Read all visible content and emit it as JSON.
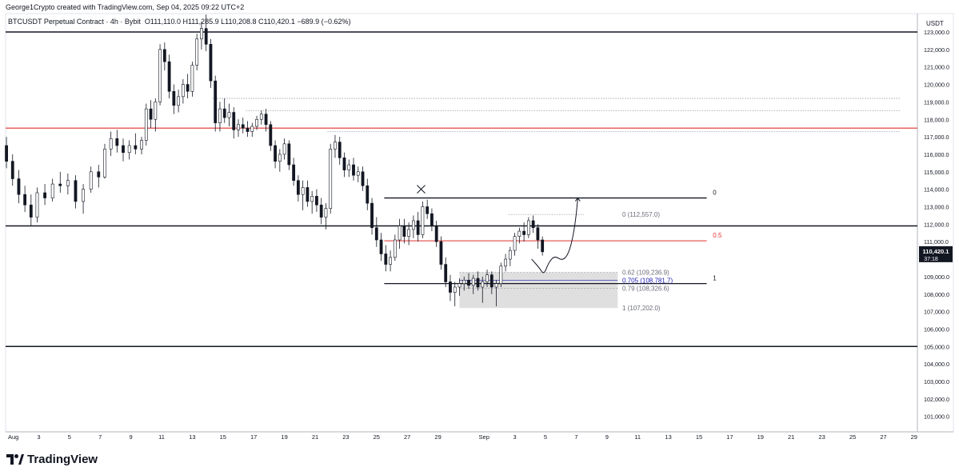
{
  "header": {
    "credit": "George1Crypto created with TradingView.com, Sep 04, 2025 09:22 UTC+2",
    "symbol": "BTCUSDT Perpetual Contract · 4h · Bybit",
    "ohlc": "O111,110.0  H111,285.9  L110,208.8  C110,420.1  −689.9 (−0.62%)"
  },
  "brand": {
    "name": "TradingView",
    "icon": "tradingview-logo-icon"
  },
  "colors": {
    "up": "#131722",
    "down": "#131722",
    "red_level": "#e0312f",
    "fib_blue": "#1b1bb3",
    "zone": "#d9d9d9"
  },
  "chart_data": {
    "type": "candlestick",
    "title": "",
    "ylabel": "USDT",
    "ylim": [
      100000,
      124000
    ],
    "y_ticks": [
      101000,
      102000,
      103000,
      104000,
      105000,
      106000,
      107000,
      108000,
      109000,
      110000,
      111000,
      112000,
      113000,
      114000,
      115000,
      116000,
      117000,
      118000,
      119000,
      120000,
      121000,
      122000,
      123000
    ],
    "x_ticks": [
      {
        "label": "Aug",
        "day": 1
      },
      {
        "label": "3",
        "day": 3
      },
      {
        "label": "5",
        "day": 5
      },
      {
        "label": "7",
        "day": 7
      },
      {
        "label": "9",
        "day": 9
      },
      {
        "label": "11",
        "day": 11
      },
      {
        "label": "13",
        "day": 13
      },
      {
        "label": "15",
        "day": 15
      },
      {
        "label": "17",
        "day": 17
      },
      {
        "label": "19",
        "day": 19
      },
      {
        "label": "21",
        "day": 21
      },
      {
        "label": "23",
        "day": 23
      },
      {
        "label": "25",
        "day": 25
      },
      {
        "label": "27",
        "day": 27
      },
      {
        "label": "29",
        "day": 29
      },
      {
        "label": "Sep",
        "day": 32
      },
      {
        "label": "3",
        "day": 34
      },
      {
        "label": "5",
        "day": 36
      },
      {
        "label": "7",
        "day": 38
      },
      {
        "label": "9",
        "day": 40
      },
      {
        "label": "11",
        "day": 42
      },
      {
        "label": "13",
        "day": 44
      },
      {
        "label": "15",
        "day": 46
      },
      {
        "label": "17",
        "day": 48
      },
      {
        "label": "19",
        "day": 50
      },
      {
        "label": "21",
        "day": 52
      },
      {
        "label": "23",
        "day": 54
      },
      {
        "label": "25",
        "day": 56
      },
      {
        "label": "27",
        "day": 58
      },
      {
        "label": "29",
        "day": 60
      }
    ],
    "candles": [
      {
        "day": 0.9,
        "o": 116500,
        "h": 117000,
        "l": 115200,
        "c": 115600
      },
      {
        "day": 1.3,
        "o": 115600,
        "h": 116000,
        "l": 114200,
        "c": 114600
      },
      {
        "day": 1.7,
        "o": 114600,
        "h": 115100,
        "l": 113200,
        "c": 113700
      },
      {
        "day": 2.1,
        "o": 113700,
        "h": 114200,
        "l": 112700,
        "c": 113100
      },
      {
        "day": 2.5,
        "o": 113100,
        "h": 113700,
        "l": 111900,
        "c": 112400
      },
      {
        "day": 2.9,
        "o": 112400,
        "h": 114100,
        "l": 112100,
        "c": 113800
      },
      {
        "day": 3.4,
        "o": 113800,
        "h": 114300,
        "l": 113100,
        "c": 113500
      },
      {
        "day": 3.9,
        "o": 113500,
        "h": 114600,
        "l": 113300,
        "c": 114300
      },
      {
        "day": 4.4,
        "o": 114300,
        "h": 115000,
        "l": 113800,
        "c": 114200
      },
      {
        "day": 4.9,
        "o": 114200,
        "h": 114900,
        "l": 113700,
        "c": 114500
      },
      {
        "day": 5.4,
        "o": 114500,
        "h": 114800,
        "l": 112900,
        "c": 113300
      },
      {
        "day": 5.9,
        "o": 113300,
        "h": 114300,
        "l": 112600,
        "c": 114000
      },
      {
        "day": 6.4,
        "o": 114000,
        "h": 115300,
        "l": 113800,
        "c": 115000
      },
      {
        "day": 6.9,
        "o": 115000,
        "h": 115400,
        "l": 114100,
        "c": 114700
      },
      {
        "day": 7.3,
        "o": 114700,
        "h": 116600,
        "l": 114600,
        "c": 116300
      },
      {
        "day": 7.7,
        "o": 116300,
        "h": 117300,
        "l": 115900,
        "c": 116900
      },
      {
        "day": 8.1,
        "o": 116900,
        "h": 117400,
        "l": 116100,
        "c": 116500
      },
      {
        "day": 8.5,
        "o": 116500,
        "h": 116900,
        "l": 115600,
        "c": 116100
      },
      {
        "day": 8.9,
        "o": 116100,
        "h": 116800,
        "l": 115700,
        "c": 116500
      },
      {
        "day": 9.3,
        "o": 116500,
        "h": 117200,
        "l": 116000,
        "c": 116300
      },
      {
        "day": 9.7,
        "o": 116300,
        "h": 117000,
        "l": 116000,
        "c": 116800
      },
      {
        "day": 10.0,
        "o": 116800,
        "h": 118900,
        "l": 116500,
        "c": 118600
      },
      {
        "day": 10.3,
        "o": 118600,
        "h": 119100,
        "l": 117500,
        "c": 118000
      },
      {
        "day": 10.6,
        "o": 118000,
        "h": 119200,
        "l": 117300,
        "c": 119000
      },
      {
        "day": 10.9,
        "o": 119000,
        "h": 122300,
        "l": 118800,
        "c": 122000
      },
      {
        "day": 11.2,
        "o": 122000,
        "h": 122400,
        "l": 120800,
        "c": 121300
      },
      {
        "day": 11.5,
        "o": 121300,
        "h": 121700,
        "l": 119200,
        "c": 119600
      },
      {
        "day": 11.8,
        "o": 119600,
        "h": 120000,
        "l": 118300,
        "c": 118800
      },
      {
        "day": 12.1,
        "o": 118800,
        "h": 119700,
        "l": 118400,
        "c": 119300
      },
      {
        "day": 12.4,
        "o": 119300,
        "h": 120300,
        "l": 118900,
        "c": 120000
      },
      {
        "day": 12.7,
        "o": 120000,
        "h": 120600,
        "l": 119200,
        "c": 119600
      },
      {
        "day": 13.0,
        "o": 119600,
        "h": 121300,
        "l": 119300,
        "c": 121100
      },
      {
        "day": 13.3,
        "o": 121100,
        "h": 122900,
        "l": 120800,
        "c": 122600
      },
      {
        "day": 13.6,
        "o": 122600,
        "h": 123600,
        "l": 122000,
        "c": 123200
      },
      {
        "day": 13.9,
        "o": 123200,
        "h": 124000,
        "l": 121900,
        "c": 122300
      },
      {
        "day": 14.2,
        "o": 122300,
        "h": 122600,
        "l": 119800,
        "c": 120200
      },
      {
        "day": 14.5,
        "o": 120200,
        "h": 120500,
        "l": 117300,
        "c": 117800
      },
      {
        "day": 14.8,
        "o": 117800,
        "h": 119000,
        "l": 117300,
        "c": 118600
      },
      {
        "day": 15.1,
        "o": 118600,
        "h": 119200,
        "l": 117800,
        "c": 118100
      },
      {
        "day": 15.4,
        "o": 118100,
        "h": 118900,
        "l": 117600,
        "c": 118400
      },
      {
        "day": 15.7,
        "o": 118400,
        "h": 118700,
        "l": 116900,
        "c": 117400
      },
      {
        "day": 16.0,
        "o": 117400,
        "h": 118000,
        "l": 117000,
        "c": 117700
      },
      {
        "day": 16.3,
        "o": 117700,
        "h": 118100,
        "l": 117200,
        "c": 117500
      },
      {
        "day": 16.6,
        "o": 117500,
        "h": 117900,
        "l": 117000,
        "c": 117300
      },
      {
        "day": 16.9,
        "o": 117300,
        "h": 117800,
        "l": 117000,
        "c": 117600
      },
      {
        "day": 17.2,
        "o": 117600,
        "h": 118200,
        "l": 117400,
        "c": 118000
      },
      {
        "day": 17.5,
        "o": 118000,
        "h": 118500,
        "l": 117700,
        "c": 118300
      },
      {
        "day": 17.8,
        "o": 118300,
        "h": 118600,
        "l": 117300,
        "c": 117700
      },
      {
        "day": 18.1,
        "o": 117700,
        "h": 117900,
        "l": 116200,
        "c": 116500
      },
      {
        "day": 18.4,
        "o": 116500,
        "h": 116800,
        "l": 115200,
        "c": 115600
      },
      {
        "day": 18.7,
        "o": 115600,
        "h": 116300,
        "l": 115000,
        "c": 116000
      },
      {
        "day": 19.0,
        "o": 116000,
        "h": 116900,
        "l": 115700,
        "c": 116600
      },
      {
        "day": 19.3,
        "o": 116600,
        "h": 116800,
        "l": 115100,
        "c": 115400
      },
      {
        "day": 19.6,
        "o": 115400,
        "h": 115800,
        "l": 114200,
        "c": 114500
      },
      {
        "day": 19.9,
        "o": 114500,
        "h": 114800,
        "l": 113300,
        "c": 113700
      },
      {
        "day": 20.2,
        "o": 113700,
        "h": 114500,
        "l": 112800,
        "c": 114100
      },
      {
        "day": 20.5,
        "o": 114100,
        "h": 114500,
        "l": 113000,
        "c": 113300
      },
      {
        "day": 20.8,
        "o": 113300,
        "h": 113900,
        "l": 112600,
        "c": 113600
      },
      {
        "day": 21.1,
        "o": 113600,
        "h": 114000,
        "l": 112700,
        "c": 113100
      },
      {
        "day": 21.4,
        "o": 113100,
        "h": 113500,
        "l": 112000,
        "c": 112400
      },
      {
        "day": 21.7,
        "o": 112400,
        "h": 113200,
        "l": 111700,
        "c": 112900
      },
      {
        "day": 22.0,
        "o": 112900,
        "h": 116600,
        "l": 112600,
        "c": 116300
      },
      {
        "day": 22.3,
        "o": 116300,
        "h": 117100,
        "l": 115800,
        "c": 116700
      },
      {
        "day": 22.6,
        "o": 116700,
        "h": 117000,
        "l": 115400,
        "c": 115800
      },
      {
        "day": 22.9,
        "o": 115800,
        "h": 116100,
        "l": 114700,
        "c": 115100
      },
      {
        "day": 23.2,
        "o": 115100,
        "h": 115700,
        "l": 114700,
        "c": 115400
      },
      {
        "day": 23.5,
        "o": 115400,
        "h": 115800,
        "l": 114500,
        "c": 114800
      },
      {
        "day": 23.8,
        "o": 114800,
        "h": 115300,
        "l": 114400,
        "c": 115000
      },
      {
        "day": 24.1,
        "o": 115000,
        "h": 115300,
        "l": 113900,
        "c": 114200
      },
      {
        "day": 24.4,
        "o": 114200,
        "h": 114600,
        "l": 112800,
        "c": 113200
      },
      {
        "day": 24.7,
        "o": 113200,
        "h": 113500,
        "l": 111400,
        "c": 111800
      },
      {
        "day": 25.0,
        "o": 111800,
        "h": 112400,
        "l": 110700,
        "c": 111100
      },
      {
        "day": 25.3,
        "o": 111100,
        "h": 111500,
        "l": 109900,
        "c": 110300
      },
      {
        "day": 25.6,
        "o": 110300,
        "h": 110800,
        "l": 109300,
        "c": 109700
      },
      {
        "day": 25.9,
        "o": 109700,
        "h": 110500,
        "l": 109300,
        "c": 110100
      },
      {
        "day": 26.2,
        "o": 110100,
        "h": 111400,
        "l": 109900,
        "c": 111100
      },
      {
        "day": 26.5,
        "o": 111100,
        "h": 112300,
        "l": 110600,
        "c": 111900
      },
      {
        "day": 26.8,
        "o": 111900,
        "h": 112300,
        "l": 110900,
        "c": 111300
      },
      {
        "day": 27.1,
        "o": 111300,
        "h": 112100,
        "l": 110800,
        "c": 111700
      },
      {
        "day": 27.4,
        "o": 111700,
        "h": 112500,
        "l": 111200,
        "c": 112200
      },
      {
        "day": 27.7,
        "o": 112200,
        "h": 112700,
        "l": 111000,
        "c": 111400
      },
      {
        "day": 28.0,
        "o": 111400,
        "h": 113300,
        "l": 111200,
        "c": 113000
      },
      {
        "day": 28.3,
        "o": 113000,
        "h": 113400,
        "l": 112300,
        "c": 112600
      },
      {
        "day": 28.6,
        "o": 112600,
        "h": 112900,
        "l": 111600,
        "c": 111900
      },
      {
        "day": 28.9,
        "o": 111900,
        "h": 112200,
        "l": 110700,
        "c": 111000
      },
      {
        "day": 29.2,
        "o": 111000,
        "h": 111300,
        "l": 109400,
        "c": 109700
      },
      {
        "day": 29.5,
        "o": 109700,
        "h": 110100,
        "l": 108400,
        "c": 108700
      },
      {
        "day": 29.8,
        "o": 108700,
        "h": 109100,
        "l": 107600,
        "c": 108100
      },
      {
        "day": 30.1,
        "o": 108100,
        "h": 108700,
        "l": 107300,
        "c": 108400
      },
      {
        "day": 30.4,
        "o": 108400,
        "h": 108900,
        "l": 107900,
        "c": 108600
      },
      {
        "day": 30.7,
        "o": 108600,
        "h": 109000,
        "l": 108200,
        "c": 108800
      },
      {
        "day": 31.0,
        "o": 108800,
        "h": 109200,
        "l": 108300,
        "c": 108500
      },
      {
        "day": 31.3,
        "o": 108500,
        "h": 109100,
        "l": 108000,
        "c": 108900
      },
      {
        "day": 31.6,
        "o": 108900,
        "h": 109300,
        "l": 108200,
        "c": 108400
      },
      {
        "day": 31.9,
        "o": 108400,
        "h": 109000,
        "l": 107500,
        "c": 108700
      },
      {
        "day": 32.2,
        "o": 108700,
        "h": 109400,
        "l": 108400,
        "c": 109100
      },
      {
        "day": 32.5,
        "o": 109100,
        "h": 109300,
        "l": 108000,
        "c": 108400
      },
      {
        "day": 32.8,
        "o": 108400,
        "h": 108800,
        "l": 107300,
        "c": 108600
      },
      {
        "day": 33.1,
        "o": 108600,
        "h": 109800,
        "l": 108400,
        "c": 109600
      },
      {
        "day": 33.4,
        "o": 109600,
        "h": 110300,
        "l": 109300,
        "c": 110000
      },
      {
        "day": 33.7,
        "o": 110000,
        "h": 110700,
        "l": 109600,
        "c": 110500
      },
      {
        "day": 34.0,
        "o": 110500,
        "h": 111500,
        "l": 110200,
        "c": 111300
      },
      {
        "day": 34.3,
        "o": 111300,
        "h": 111800,
        "l": 110900,
        "c": 111600
      },
      {
        "day": 34.6,
        "o": 111600,
        "h": 112100,
        "l": 111000,
        "c": 111400
      },
      {
        "day": 34.9,
        "o": 111400,
        "h": 112400,
        "l": 111200,
        "c": 112200
      },
      {
        "day": 35.2,
        "o": 112200,
        "h": 112500,
        "l": 111500,
        "c": 111800
      },
      {
        "day": 35.5,
        "o": 111800,
        "h": 112000,
        "l": 110600,
        "c": 111100
      },
      {
        "day": 35.8,
        "o": 111100,
        "h": 111300,
        "l": 110200,
        "c": 110420
      }
    ],
    "series": [
      {
        "kind": "horizontal-level",
        "y": 123000,
        "color": "#131722"
      },
      {
        "kind": "horizontal-level",
        "y": 117500,
        "color": "#e0312f"
      },
      {
        "kind": "horizontal-level",
        "y": 111900,
        "color": "#131722"
      },
      {
        "kind": "horizontal-level",
        "y": 105000,
        "color": "#131722"
      },
      {
        "kind": "dotted-level",
        "x_from": 14.3,
        "y": 119200
      },
      {
        "kind": "dotted-level",
        "x_from": 16.5,
        "y": 118500
      },
      {
        "kind": "dotted-level",
        "x_from": 21.8,
        "y": 117300
      },
      {
        "kind": "dotted-level",
        "x_from": 33.6,
        "x_to": 38.5,
        "y": 112557
      }
    ],
    "fib_levels": [
      {
        "ratio_label": "0",
        "price": 113500,
        "line": true,
        "color": "#131722"
      },
      {
        "ratio_label": "0.5",
        "price": 111050,
        "line": true,
        "color": "#e0312f"
      },
      {
        "ratio_label": "1",
        "price": 108600,
        "line": true,
        "color": "#131722"
      }
    ],
    "fib_range": {
      "x_from": 25.5,
      "x_to": 46.5
    },
    "fib_label_x": 46.9,
    "retracement_labels": [
      {
        "text": "0 (112,557.0)",
        "price": 112557,
        "color": "#6a6d78"
      },
      {
        "text": "0.62 (109,236.9)",
        "price": 109237,
        "color": "#6a6d78"
      },
      {
        "text": "0.705 (108,781.7)",
        "price": 108782,
        "color": "#1b1bb3"
      },
      {
        "text": "0.79 (108,326.6)",
        "price": 108327,
        "color": "#6a6d78"
      },
      {
        "text": "1 (107,202.0)",
        "price": 107202,
        "color": "#6a6d78"
      }
    ],
    "retracement_label_x": 41.0,
    "zone": {
      "x_from": 30.4,
      "x_to": 40.7,
      "y_from": 107202,
      "y_to": 109237
    },
    "projection_path": [
      {
        "day": 35.1,
        "y": 110000
      },
      {
        "day": 35.6,
        "y": 109500
      },
      {
        "day": 35.9,
        "y": 109100
      },
      {
        "day": 36.2,
        "y": 109800
      },
      {
        "day": 36.6,
        "y": 110200
      },
      {
        "day": 37.1,
        "y": 109900
      },
      {
        "day": 37.5,
        "y": 110300
      },
      {
        "day": 37.8,
        "y": 111300
      },
      {
        "day": 38.0,
        "y": 112500
      },
      {
        "day": 38.1,
        "y": 113500
      }
    ],
    "cross_marker": {
      "day": 27.9,
      "y": 114000
    },
    "last_price": {
      "value": "110,420.1",
      "countdown": "37:18"
    }
  }
}
